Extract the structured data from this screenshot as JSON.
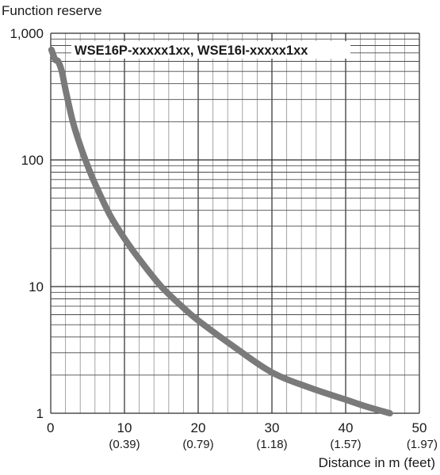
{
  "chart_data": {
    "type": "line",
    "y_axis_title": "Function reserve",
    "x_axis_title": "Distance in m (feet)",
    "legend_label": "WSE16P-xxxxx1xx, WSE16I-xxxxx1xx",
    "yscale": "log",
    "ylim": [
      1,
      1000
    ],
    "xlim": [
      0,
      50
    ],
    "y_ticks": [
      {
        "value": 1,
        "label": "1"
      },
      {
        "value": 10,
        "label": "10"
      },
      {
        "value": 100,
        "label": "100"
      },
      {
        "value": 1000,
        "label": "1,000"
      }
    ],
    "x_ticks": [
      {
        "value": 0,
        "label": "0",
        "sublabel": ""
      },
      {
        "value": 10,
        "label": "10",
        "sublabel": "(0.39)"
      },
      {
        "value": 20,
        "label": "20",
        "sublabel": "(0.79)"
      },
      {
        "value": 30,
        "label": "30",
        "sublabel": "(1.18)"
      },
      {
        "value": 40,
        "label": "40",
        "sublabel": "(1.57)"
      },
      {
        "value": 50,
        "label": "50",
        "sublabel": "(1.97)"
      }
    ],
    "grid": true,
    "line_color": "#7a7a7a",
    "series": [
      {
        "x": [
          0.1,
          0.6,
          1.0,
          1.5,
          2.0,
          3.0,
          4.0,
          5.0,
          6.0,
          8.0,
          10.0,
          12.0,
          15.0,
          18.0,
          20.0,
          25.0,
          30.0,
          35.0,
          40.0,
          43.0,
          46.0
        ],
        "y": [
          740,
          620,
          600,
          500,
          360,
          200,
          130,
          90,
          65,
          37,
          24,
          16.5,
          10,
          6.8,
          5.4,
          3.3,
          2.1,
          1.6,
          1.28,
          1.12,
          1.0
        ]
      }
    ]
  }
}
